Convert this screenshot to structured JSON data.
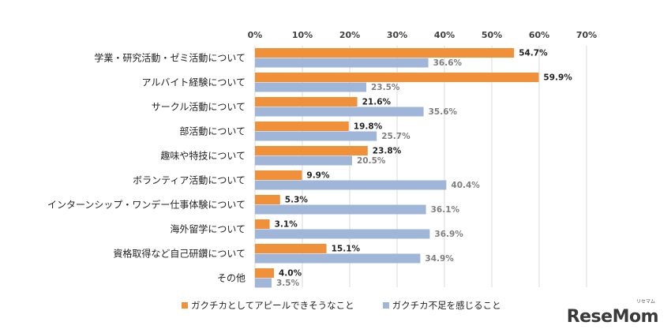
{
  "chart_data": {
    "type": "bar",
    "orientation": "horizontal",
    "categories": [
      "学業・研究活動・ゼミ活動について",
      "アルバイト経験について",
      "サークル活動について",
      "部活動について",
      "趣味や特技について",
      "ボランティア活動について",
      "インターンシップ・ワンデー仕事体験について",
      "海外留学について",
      "資格取得など自己研鑽について",
      "その他"
    ],
    "series": [
      {
        "name": "ガクチカとしてアピールできそうなこと",
        "color": "#f0913a",
        "values": [
          54.7,
          59.9,
          21.6,
          19.8,
          23.8,
          9.9,
          5.3,
          3.1,
          15.1,
          4.0
        ]
      },
      {
        "name": "ガクチカ不足を感じること",
        "color": "#9fb6d8",
        "values": [
          36.6,
          23.5,
          35.6,
          25.7,
          20.5,
          40.4,
          36.1,
          36.9,
          34.9,
          3.5
        ]
      }
    ],
    "xlim": [
      0,
      70
    ],
    "xticks": [
      "0%",
      "10%",
      "20%",
      "30%",
      "40%",
      "50%",
      "60%",
      "70%"
    ],
    "value_suffix": "%",
    "grid": true,
    "legend_position": "bottom"
  },
  "legend": {
    "item1": "ガクチカとしてアピールできそうなこと",
    "item2": "ガクチカ不足を感じること"
  },
  "logo": {
    "text": "ReseMom",
    "sub": "リセマム"
  }
}
